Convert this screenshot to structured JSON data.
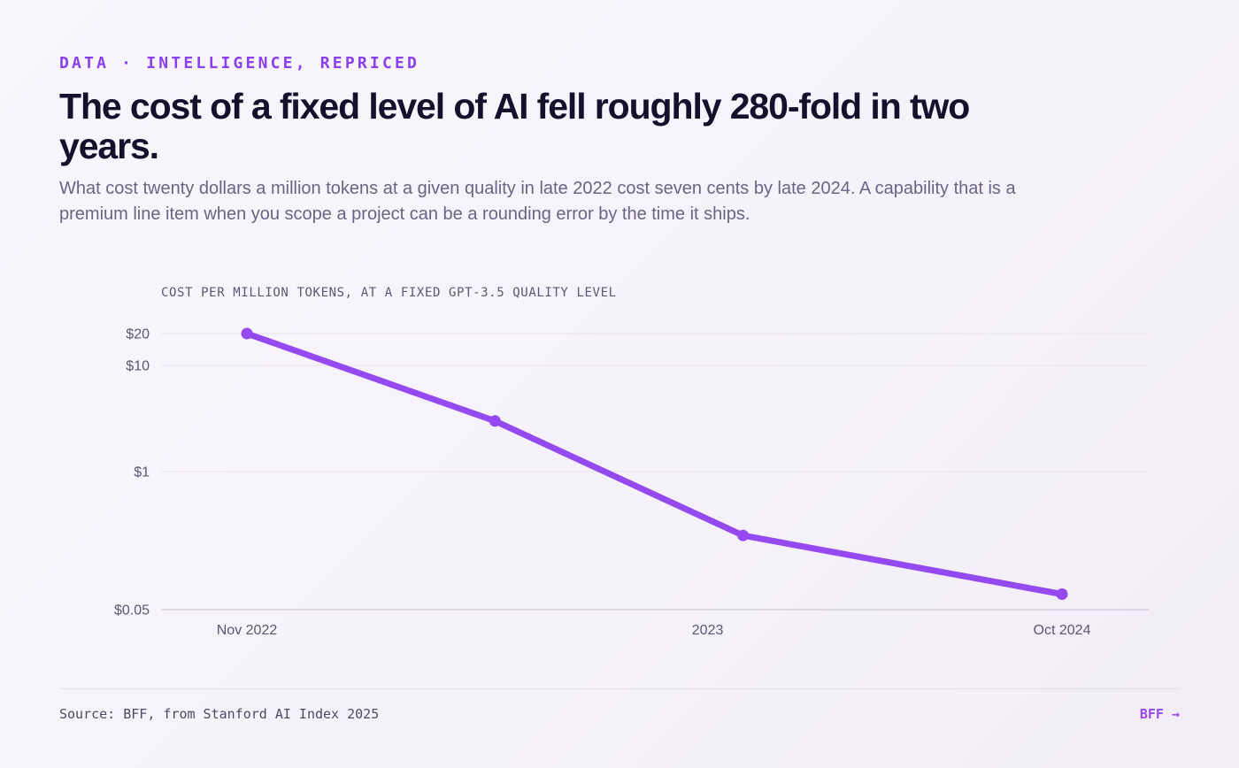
{
  "header": {
    "eyebrow": "DATA · INTELLIGENCE, REPRICED",
    "title": "The cost of a fixed level of AI fell roughly 280-fold in two years.",
    "subtitle": "What cost twenty dollars a million tokens at a given quality in late 2022 cost seven cents by late 2024. A capability that is a premium line item when you scope a project can be a rounding error by the time it ships."
  },
  "chart_data": {
    "type": "line",
    "title": "COST PER MILLION TOKENS, AT A FIXED GPT-3.5 QUALITY LEVEL",
    "x": [
      "2022-11",
      "2023-06",
      "2024-01",
      "2024-10"
    ],
    "series": [
      {
        "values": [
          20,
          3,
          0.25,
          0.07
        ]
      }
    ],
    "x_ticks": [
      {
        "x": "2022-11",
        "label": "Nov 2022"
      },
      {
        "x": "2023-12",
        "label": "2023"
      },
      {
        "x": "2024-10",
        "label": "Oct 2024"
      }
    ],
    "y_ticks": [
      {
        "value": 20,
        "label": "$20"
      },
      {
        "value": 10,
        "label": "$10"
      },
      {
        "value": 1,
        "label": "$1"
      },
      {
        "value": 0.05,
        "label": "$0.05"
      }
    ],
    "y_scale": "log",
    "ylim": [
      0.05,
      20
    ],
    "xlim": [
      "2022-11",
      "2024-10"
    ],
    "grid": true,
    "line_color": "#9549f0",
    "grid_color": "#e7e2ef",
    "axis_color": "#d5cfe0"
  },
  "footer": {
    "source": "Source: BFF, from Stanford AI Index 2025",
    "brand_link": "BFF →"
  }
}
